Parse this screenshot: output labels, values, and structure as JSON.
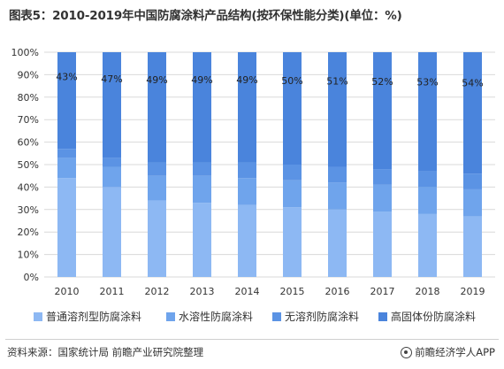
{
  "header": {
    "title": "图表5：2010-2019年中国防腐涂料产品结构(按环保性能分类)(单位：%)"
  },
  "footer": {
    "source": "资料来源：国家统计局 前瞻产业研究院整理",
    "brand": "前瞻经济学人APP"
  },
  "colors": {
    "s1": "#8db8f3",
    "s2": "#6fa4ec",
    "s3": "#5b93e4",
    "s4": "#4a84dc",
    "grid": "#d9d9d9",
    "axis_text": "#333333"
  },
  "chart_data": {
    "type": "bar",
    "stacked": true,
    "normalized": true,
    "categories": [
      "2010",
      "2011",
      "2012",
      "2013",
      "2014",
      "2015",
      "2016",
      "2017",
      "2018",
      "2019"
    ],
    "ylim": [
      0,
      100
    ],
    "yticks": [
      "0%",
      "10%",
      "20%",
      "30%",
      "40%",
      "50%",
      "60%",
      "70%",
      "80%",
      "90%",
      "100%"
    ],
    "grid": true,
    "legend_position": "bottom",
    "series": [
      {
        "name": "普通溶剂型防腐涂料",
        "values": [
          44,
          40,
          34,
          33,
          32,
          31,
          30,
          29,
          28,
          27
        ]
      },
      {
        "name": "水溶性防腐涂料",
        "values": [
          9,
          9,
          11,
          12,
          12,
          12,
          12,
          12,
          12,
          12
        ]
      },
      {
        "name": "无溶剂防腐涂料",
        "values": [
          4,
          4,
          6,
          6,
          7,
          7,
          7,
          7,
          7,
          7
        ]
      },
      {
        "name": "高固体份防腐涂料",
        "values": [
          43,
          47,
          49,
          49,
          49,
          50,
          51,
          52,
          53,
          54
        ]
      }
    ],
    "data_labels": [
      "43%",
      "47%",
      "49%",
      "49%",
      "49%",
      "50%",
      "51%",
      "52%",
      "53%",
      "54%"
    ]
  }
}
